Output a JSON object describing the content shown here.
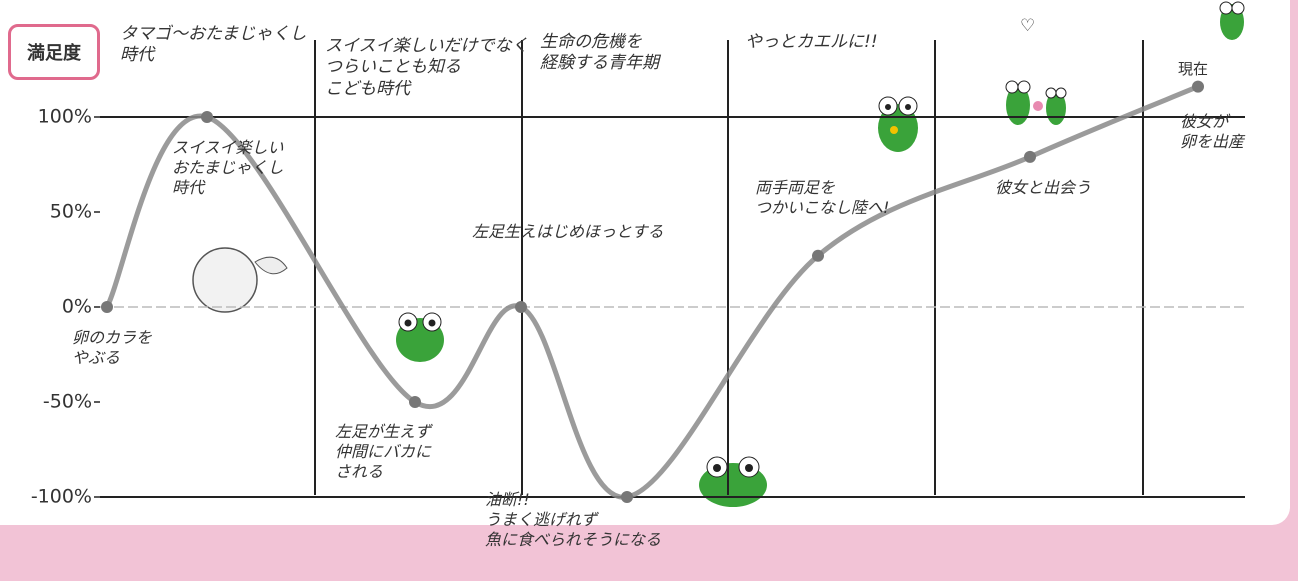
{
  "chart_data": {
    "type": "line",
    "y_label": "満足度",
    "stages": [
      "タマゴ〜おたまじゃくし\n時代",
      "スイスイ楽しいだけでなく\nつらいことも知る\nこども時代",
      "生命の危機を\n経験する青年期",
      "やっとカエルに!!",
      "♡"
    ],
    "categories": [
      "卵のカラを\nやぶる",
      "スイスイ楽しい\nおたまじゃくし\n時代",
      "左足が生えず\n仲間にバカに\nされる",
      "左足生えはじめほっとする",
      "油断!!\nうまく逃げれず\n魚に食べられそうになる",
      "両手両足を\nつかいこなし陸へ!",
      "彼女と出会う",
      "彼女が\n卵を出産"
    ],
    "current_label": "現在",
    "values": [
      0,
      100,
      -50,
      0,
      -100,
      27,
      79,
      116
    ],
    "color": "#8a8a8a",
    "ylim": [
      -100,
      100
    ],
    "yticks": [
      {
        "value": 100,
        "label": "100%"
      },
      {
        "value": 50,
        "label": "50%"
      },
      {
        "value": 0,
        "label": "0%"
      },
      {
        "value": -50,
        "label": "-50%"
      },
      {
        "value": -100,
        "label": "-100%"
      }
    ]
  }
}
